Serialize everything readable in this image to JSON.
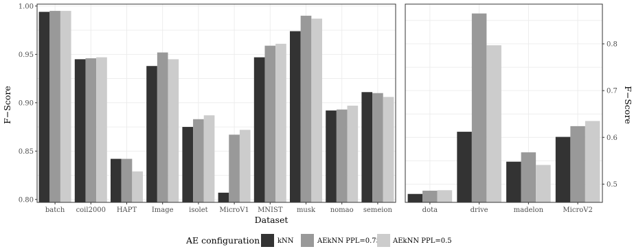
{
  "chart_data": [
    {
      "type": "bar",
      "categories": [
        "batch",
        "coil2000",
        "HAPT",
        "Image",
        "isolet",
        "MicroV1",
        "MNIST",
        "musk",
        "nomao",
        "semeion"
      ],
      "series": [
        {
          "name": "kNN",
          "values": [
            0.994,
            0.945,
            0.842,
            0.938,
            0.875,
            0.807,
            0.947,
            0.974,
            0.892,
            0.911
          ]
        },
        {
          "name": "AEkNN PPL=0.75",
          "values": [
            0.995,
            0.946,
            0.842,
            0.952,
            0.883,
            0.867,
            0.959,
            0.99,
            0.893,
            0.91
          ]
        },
        {
          "name": "AEkNN PPL=0.5",
          "values": [
            0.995,
            0.947,
            0.829,
            0.945,
            0.887,
            0.872,
            0.961,
            0.987,
            0.897,
            0.906
          ]
        }
      ],
      "ylim": [
        0.797,
        1.002
      ],
      "yticks": [
        0.8,
        0.85,
        0.9,
        0.95,
        1.0
      ],
      "ytick_labels": [
        "0.80",
        "0.85",
        "0.90",
        "0.95",
        "1.00"
      ],
      "ylabel": "F−Score",
      "yaxis_side": "left",
      "grid": true
    },
    {
      "type": "bar",
      "categories": [
        "dota",
        "drive",
        "madelon",
        "MicroV2"
      ],
      "series": [
        {
          "name": "kNN",
          "values": [
            0.479,
            0.612,
            0.548,
            0.601
          ]
        },
        {
          "name": "AEkNN PPL=0.75",
          "values": [
            0.486,
            0.865,
            0.568,
            0.624
          ]
        },
        {
          "name": "AEkNN PPL=0.5",
          "values": [
            0.487,
            0.797,
            0.541,
            0.635
          ]
        }
      ],
      "ylim": [
        0.461,
        0.885
      ],
      "yticks": [
        0.5,
        0.6,
        0.7,
        0.8
      ],
      "ytick_labels": [
        "0.5",
        "0.6",
        "0.7",
        "0.8"
      ],
      "ylabel": "F−Score",
      "yaxis_side": "right",
      "grid": true
    }
  ],
  "xlabel": "Dataset",
  "legend": {
    "title": "AE configuration",
    "position": "bottom",
    "entries": [
      {
        "label": "kNN",
        "color": "#333333"
      },
      {
        "label": "AEkNN PPL=0.75",
        "color": "#999999"
      },
      {
        "label": "AEkNN PPL=0.5",
        "color": "#cccccc"
      }
    ]
  },
  "colors": [
    "#333333",
    "#999999",
    "#cccccc"
  ]
}
